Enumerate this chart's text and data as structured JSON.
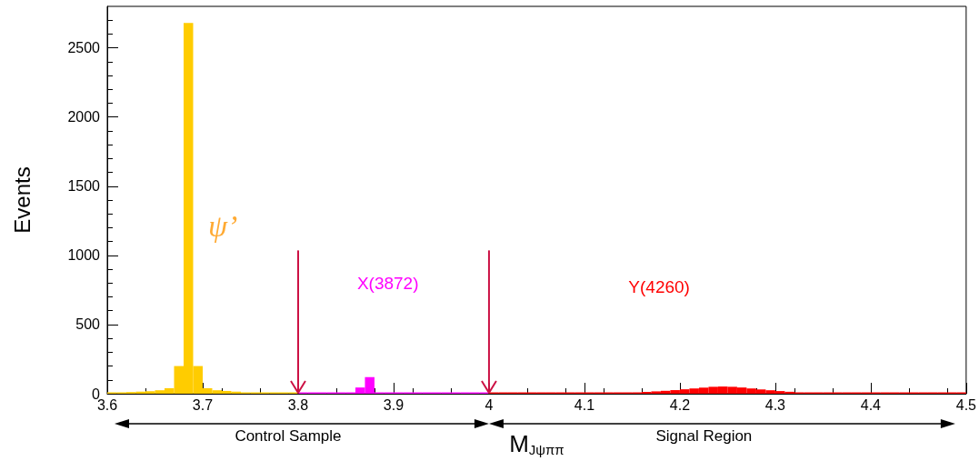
{
  "chart_data": {
    "type": "histogram",
    "xlabel": "M$_{Jψππ}$",
    "ylabel": "Events",
    "bins": [
      3.6,
      3.61,
      3.62,
      3.63,
      3.64,
      3.65,
      3.66,
      3.67,
      3.68,
      3.69,
      3.7,
      3.71,
      3.72,
      3.73,
      3.74,
      3.75,
      3.76,
      3.77,
      3.78,
      3.79,
      3.8,
      3.81,
      3.82,
      3.83,
      3.84,
      3.85,
      3.86,
      3.87,
      3.88,
      3.89,
      3.9,
      3.91,
      3.92,
      3.93,
      3.94,
      3.95,
      3.96,
      3.97,
      3.98,
      3.99,
      4.0,
      4.01,
      4.02,
      4.03,
      4.04,
      4.05,
      4.06,
      4.07,
      4.08,
      4.09,
      4.1,
      4.11,
      4.12,
      4.13,
      4.14,
      4.15,
      4.16,
      4.17,
      4.18,
      4.19,
      4.2,
      4.21,
      4.22,
      4.23,
      4.24,
      4.25,
      4.26,
      4.27,
      4.28,
      4.29,
      4.3,
      4.31,
      4.32,
      4.33,
      4.34,
      4.35,
      4.36,
      4.37,
      4.38,
      4.39,
      4.4,
      4.41,
      4.42,
      4.43,
      4.44,
      4.45,
      4.46,
      4.47,
      4.48,
      4.49,
      4.5
    ],
    "series": [
      {
        "color": "#ffcc00",
        "values": [
          10,
          10,
          12,
          15,
          18,
          25,
          40,
          200,
          2680,
          200,
          40,
          25,
          20,
          15,
          10,
          5,
          0,
          0,
          0,
          0,
          null,
          null,
          null,
          null,
          null,
          null,
          null,
          null,
          null,
          null,
          null,
          null,
          null,
          null,
          null,
          null,
          null,
          null,
          null,
          null,
          null,
          null,
          null,
          null,
          null,
          null,
          null,
          null,
          null,
          null,
          null,
          null,
          null,
          null,
          null,
          null,
          null,
          null,
          null,
          null,
          null,
          null,
          null,
          null,
          null,
          null,
          null,
          null,
          null,
          null,
          null,
          null,
          null,
          null,
          null,
          null,
          null,
          null,
          null,
          null,
          null,
          null,
          null,
          null,
          null,
          null,
          null,
          null,
          null,
          null
        ]
      },
      {
        "color": "#ff00ff",
        "values": [
          null,
          null,
          null,
          null,
          null,
          null,
          null,
          null,
          null,
          null,
          null,
          null,
          null,
          null,
          null,
          null,
          null,
          null,
          null,
          null,
          0,
          0,
          2,
          3,
          5,
          8,
          45,
          120,
          8,
          3,
          0,
          0,
          0,
          0,
          0,
          0,
          0,
          0,
          0,
          0,
          null,
          null,
          null,
          null,
          null,
          null,
          null,
          null,
          null,
          null,
          null,
          null,
          null,
          null,
          null,
          null,
          null,
          null,
          null,
          null,
          null,
          null,
          null,
          null,
          null,
          null,
          null,
          null,
          null,
          null,
          null,
          null,
          null,
          null,
          null,
          null,
          null,
          null,
          null,
          null,
          null,
          null,
          null,
          null,
          null,
          null,
          null,
          null,
          null,
          null
        ]
      },
      {
        "color": "#ff0000",
        "values": [
          null,
          null,
          null,
          null,
          null,
          null,
          null,
          null,
          null,
          null,
          null,
          null,
          null,
          null,
          null,
          null,
          null,
          null,
          null,
          null,
          null,
          null,
          null,
          null,
          null,
          null,
          null,
          null,
          null,
          null,
          null,
          null,
          null,
          null,
          null,
          null,
          null,
          null,
          null,
          null,
          1,
          1,
          1,
          1,
          1,
          2,
          2,
          2,
          2,
          3,
          3,
          4,
          5,
          6,
          8,
          10,
          13,
          17,
          21,
          26,
          32,
          38,
          44,
          50,
          52,
          50,
          45,
          38,
          31,
          25,
          19,
          14,
          10,
          7,
          5,
          4,
          3,
          2,
          2,
          1,
          1,
          1,
          1,
          1,
          1,
          1,
          1,
          1,
          1,
          1
        ]
      }
    ],
    "annotations": [
      "ψ’",
      "X(3872)",
      "Y(4260)",
      "Control Sample",
      "Signal Region"
    ],
    "ref_lines": [
      {
        "axis": "x",
        "value": 3.8,
        "color": "#cc1144"
      },
      {
        "axis": "x",
        "value": 4.0,
        "color": "#cc1144"
      }
    ],
    "xlim": [
      3.6,
      4.5
    ],
    "xticks": [
      3.6,
      3.7,
      3.8,
      3.9,
      4,
      4.1,
      4.2,
      4.3,
      4.4,
      4.5
    ],
    "ylim": [
      0,
      2800
    ],
    "yticks": [
      0,
      500,
      1000,
      1500,
      2000,
      2500
    ],
    "grid": false,
    "legend": false
  }
}
